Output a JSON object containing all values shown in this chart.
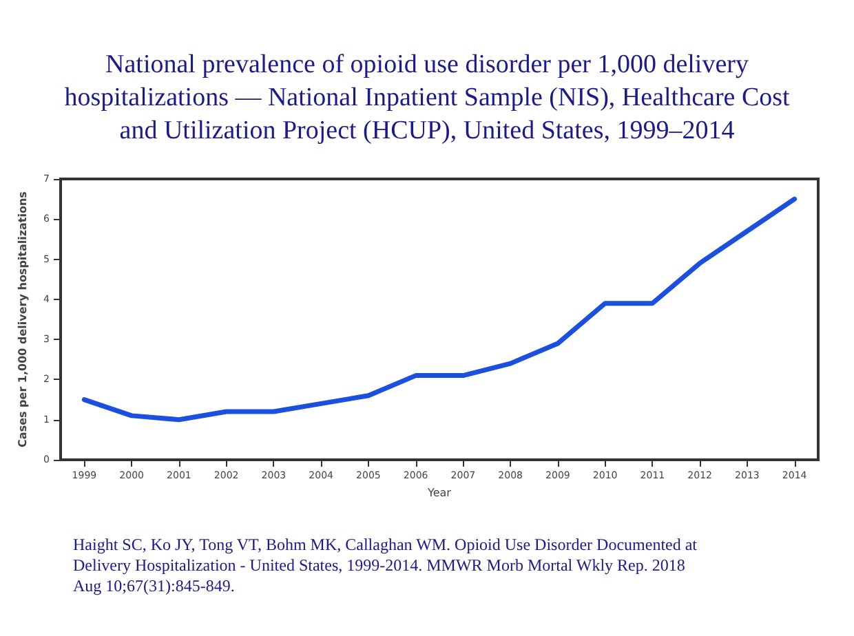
{
  "chart_data": {
    "type": "line",
    "title": "National prevalence of opioid use disorder per 1,000 delivery\nhospitalizations — National Inpatient Sample (NIS), Healthcare Cost\nand Utilization Project (HCUP), United States, 1999–2014",
    "xlabel": "Year",
    "ylabel": "Cases per 1,000 delivery hospitalizations",
    "categories": [
      "1999",
      "2000",
      "2001",
      "2002",
      "2003",
      "2004",
      "2005",
      "2006",
      "2007",
      "2008",
      "2009",
      "2010",
      "2011",
      "2012",
      "2013",
      "2014"
    ],
    "series": [
      {
        "color": "#1a4fe0",
        "values": [
          1.5,
          1.1,
          1.0,
          1.2,
          1.2,
          1.4,
          1.6,
          2.1,
          2.1,
          2.4,
          2.9,
          3.9,
          3.9,
          4.9,
          5.7,
          6.5
        ]
      }
    ],
    "ylim": [
      0,
      7
    ],
    "yticks": [
      0,
      1,
      2,
      3,
      4,
      5,
      6,
      7
    ],
    "grid": false,
    "marker": "none",
    "line_style": "solid",
    "annotations": [
      "Haight SC, Ko JY, Tong VT, Bohm MK, Callaghan WM. Opioid Use Disorder Documented at\nDelivery Hospitalization - United States, 1999-2014. MMWR Morb Mortal Wkly Rep. 2018\nAug 10;67(31):845-849."
    ]
  }
}
